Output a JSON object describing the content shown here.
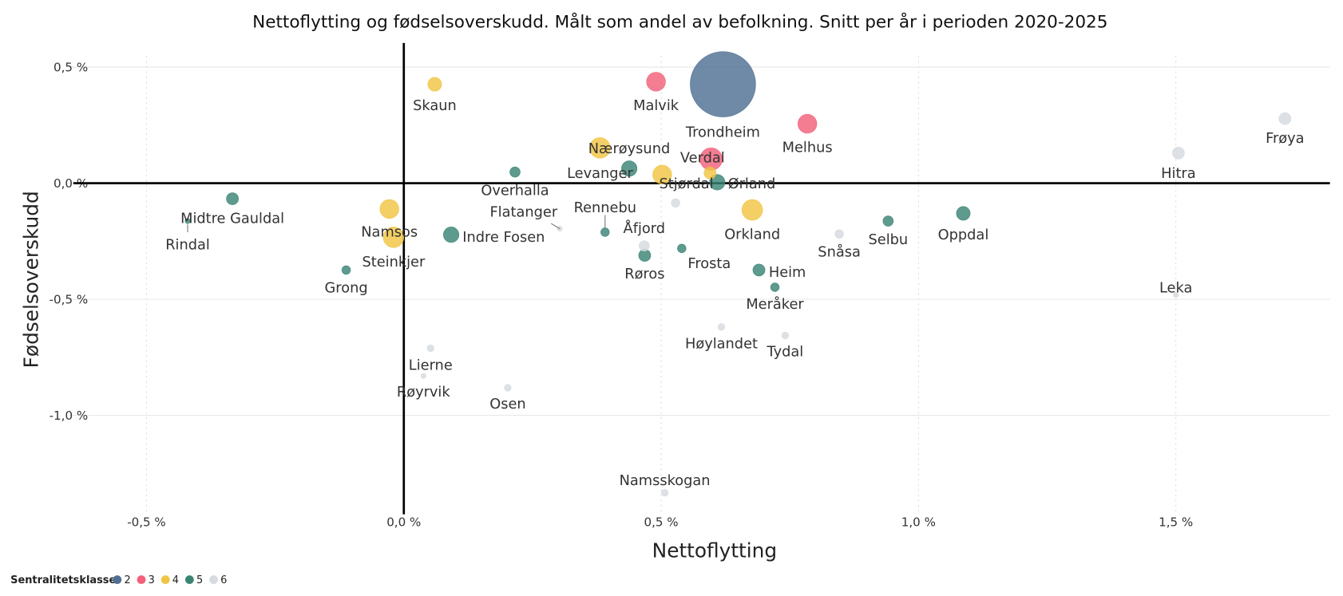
{
  "chart_data": {
    "type": "scatter",
    "title": "Nettoflytting og fødselsoverskudd. Målt som andel av befolkning. Snitt per år i perioden 2020-2025",
    "xlabel": "Nettoflytting",
    "ylabel": "Fødselsoverskudd",
    "xlim": [
      -0.6,
      1.8
    ],
    "ylim": [
      -1.4,
      0.55
    ],
    "unit": "%",
    "x_ticks": [
      {
        "v": -0.5,
        "label": "-0,5 %"
      },
      {
        "v": 0,
        "label": "0,0 %"
      },
      {
        "v": 0.5,
        "label": "0,5 %"
      },
      {
        "v": 1.0,
        "label": "1,0 %"
      },
      {
        "v": 1.5,
        "label": "1,5 %"
      }
    ],
    "y_ticks": [
      {
        "v": 0.5,
        "label": "0,5 %"
      },
      {
        "v": 0,
        "label": "0,0 %"
      },
      {
        "v": -0.5,
        "label": "-0,5 %"
      },
      {
        "v": -1.0,
        "label": "-1,0 %"
      }
    ],
    "grid": true,
    "legend": {
      "title": "Sentralitetsklasse",
      "placement": "bottom-left",
      "items": [
        {
          "label": "2",
          "color": "#4f7093"
        },
        {
          "label": "3",
          "color": "#f2607a"
        },
        {
          "label": "4",
          "color": "#f0c443"
        },
        {
          "label": "5",
          "color": "#3a8474"
        },
        {
          "label": "6",
          "color": "#d6dbe0"
        }
      ]
    },
    "points": [
      {
        "name": "Trondheim",
        "x": 0.62,
        "y": 0.426,
        "class": "2",
        "size": 1444
      },
      {
        "name": "Malvik",
        "x": 0.49,
        "y": 0.437,
        "class": "3",
        "size": 121
      },
      {
        "name": "Melhus",
        "x": 0.784,
        "y": 0.256,
        "class": "3",
        "size": 121
      },
      {
        "name": "Verdal",
        "x": 0.597,
        "y": 0.104,
        "class": "3",
        "size": 169
      },
      {
        "name": "Skaun",
        "x": 0.06,
        "y": 0.426,
        "class": "4",
        "size": 64
      },
      {
        "name": "Nærøysund",
        "x": 0.381,
        "y": 0.152,
        "class": "4",
        "size": 144
      },
      {
        "name": "Levanger",
        "x": 0.438,
        "y": 0.063,
        "class": "5",
        "size": 81
      },
      {
        "name": "Stjørdal",
        "x": 0.502,
        "y": 0.037,
        "class": "4",
        "size": 121
      },
      {
        "name": "",
        "x": 0.595,
        "y": 0.044,
        "class": "4",
        "size": 49
      },
      {
        "name": "Ørland",
        "x": 0.609,
        "y": 0.004,
        "class": "5",
        "size": 81
      },
      {
        "name": "Overhalla",
        "x": 0.216,
        "y": 0.048,
        "class": "5",
        "size": 36
      },
      {
        "name": "Flatanger",
        "x": 0.303,
        "y": -0.196,
        "class": "6",
        "size": 9
      },
      {
        "name": "Rennebu",
        "x": 0.391,
        "y": -0.211,
        "class": "5",
        "size": 25
      },
      {
        "name": "Åfjord",
        "x": 0.467,
        "y": -0.27,
        "class": "6",
        "size": 36
      },
      {
        "name": "",
        "x": 0.528,
        "y": -0.085,
        "class": "6",
        "size": 25
      },
      {
        "name": "Røros",
        "x": 0.468,
        "y": -0.311,
        "class": "5",
        "size": 49
      },
      {
        "name": "Frosta",
        "x": 0.54,
        "y": -0.281,
        "class": "5",
        "size": 25
      },
      {
        "name": "Orkland",
        "x": 0.677,
        "y": -0.115,
        "class": "4",
        "size": 144
      },
      {
        "name": "Heim",
        "x": 0.69,
        "y": -0.374,
        "class": "5",
        "size": 49
      },
      {
        "name": "Meråker",
        "x": 0.721,
        "y": -0.448,
        "class": "5",
        "size": 25
      },
      {
        "name": "Snåsa",
        "x": 0.846,
        "y": -0.219,
        "class": "6",
        "size": 25
      },
      {
        "name": "Selbu",
        "x": 0.941,
        "y": -0.163,
        "class": "5",
        "size": 36
      },
      {
        "name": "Oppdal",
        "x": 1.087,
        "y": -0.13,
        "class": "5",
        "size": 64
      },
      {
        "name": "Hitra",
        "x": 1.505,
        "y": 0.13,
        "class": "6",
        "size": 49
      },
      {
        "name": "Frøya",
        "x": 1.712,
        "y": 0.278,
        "class": "6",
        "size": 49
      },
      {
        "name": "Leka",
        "x": 1.5,
        "y": -0.481,
        "class": "6",
        "size": 9
      },
      {
        "name": "Høylandet",
        "x": 0.617,
        "y": -0.619,
        "class": "6",
        "size": 16
      },
      {
        "name": "Tydal",
        "x": 0.741,
        "y": -0.656,
        "class": "6",
        "size": 16
      },
      {
        "name": "Namsskogan",
        "x": 0.507,
        "y": -1.333,
        "class": "6",
        "size": 16
      },
      {
        "name": "Osen",
        "x": 0.202,
        "y": -0.881,
        "class": "6",
        "size": 16
      },
      {
        "name": "Lierne",
        "x": 0.052,
        "y": -0.711,
        "class": "6",
        "size": 16
      },
      {
        "name": "Røyrvik",
        "x": 0.038,
        "y": -0.83,
        "class": "6",
        "size": 9
      },
      {
        "name": "Namsos",
        "x": -0.028,
        "y": -0.111,
        "class": "4",
        "size": 121
      },
      {
        "name": "Steinkjer",
        "x": -0.02,
        "y": -0.233,
        "class": "4",
        "size": 144
      },
      {
        "name": "Indre Fosen",
        "x": 0.092,
        "y": -0.222,
        "class": "5",
        "size": 81
      },
      {
        "name": "Midtre Gauldal",
        "x": -0.333,
        "y": -0.067,
        "class": "5",
        "size": 49
      },
      {
        "name": "Rindal",
        "x": -0.42,
        "y": -0.163,
        "class": "5",
        "size": 9
      },
      {
        "name": "Grong",
        "x": -0.112,
        "y": -0.374,
        "class": "5",
        "size": 25
      }
    ]
  }
}
